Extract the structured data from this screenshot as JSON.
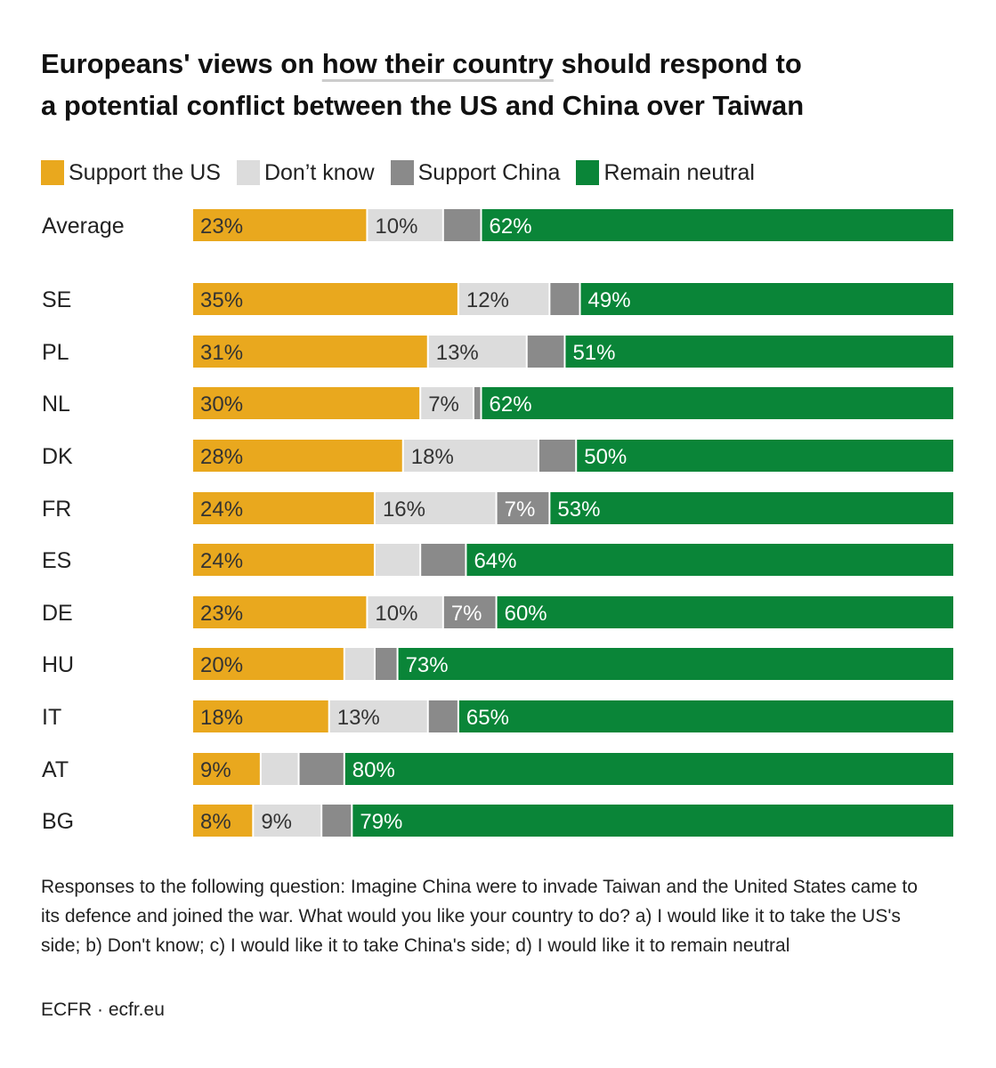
{
  "title": {
    "part1": "Europeans' views on ",
    "part2": "how their country",
    "part3": " should respond to",
    "line2": "a potential conflict between the US and China over Taiwan"
  },
  "legend": [
    {
      "label": "Support the US",
      "color": "#e9a81e"
    },
    {
      "label": "Don’t know",
      "color": "#dcdcdc"
    },
    {
      "label": "Support China",
      "color": "#8a8a8a"
    },
    {
      "label": "Remain neutral",
      "color": "#0a8538"
    }
  ],
  "chart_data": {
    "type": "bar",
    "orientation": "horizontal",
    "stacked": true,
    "categories": [
      "Average",
      "SE",
      "PL",
      "NL",
      "DK",
      "FR",
      "ES",
      "DE",
      "HU",
      "IT",
      "AT",
      "BG"
    ],
    "series": [
      {
        "name": "Support the US",
        "color": "#e9a81e",
        "values": [
          23,
          35,
          31,
          30,
          28,
          24,
          24,
          23,
          20,
          18,
          9,
          8
        ],
        "labels": [
          "23%",
          "35%",
          "31%",
          "30%",
          "28%",
          "24%",
          "24%",
          "23%",
          "20%",
          "18%",
          "9%",
          "8%"
        ]
      },
      {
        "name": "Don’t know",
        "color": "#dcdcdc",
        "values": [
          10,
          12,
          13,
          7,
          18,
          16,
          6,
          10,
          4,
          13,
          5,
          9
        ],
        "labels": [
          "10%",
          "12%",
          "13%",
          "7%",
          "18%",
          "16%",
          "",
          "10%",
          "",
          "13%",
          "",
          "9%"
        ]
      },
      {
        "name": "Support China",
        "color": "#8a8a8a",
        "values": [
          5,
          4,
          5,
          1,
          5,
          7,
          6,
          7,
          3,
          4,
          6,
          4
        ],
        "labels": [
          "",
          "",
          "",
          "",
          "",
          "7%",
          "",
          "7%",
          "",
          "",
          "",
          ""
        ]
      },
      {
        "name": "Remain neutral",
        "color": "#0a8538",
        "values": [
          62,
          49,
          51,
          62,
          50,
          53,
          64,
          60,
          73,
          65,
          80,
          79
        ],
        "labels": [
          "62%",
          "49%",
          "51%",
          "62%",
          "50%",
          "53%",
          "64%",
          "60%",
          "73%",
          "65%",
          "80%",
          "79%"
        ]
      }
    ],
    "label_colors": [
      "#333333",
      "#333333",
      "#ffffff",
      "#ffffff"
    ]
  },
  "note": "Responses to the following question: Imagine China were to invade Taiwan and the United States came to its defence and joined the war. What would you like your country to do? a) I would like it to take the US's side; b) Don't know; c) I would like it to take China's side; d) I would like it to remain neutral",
  "source": "ECFR · ecfr.eu"
}
